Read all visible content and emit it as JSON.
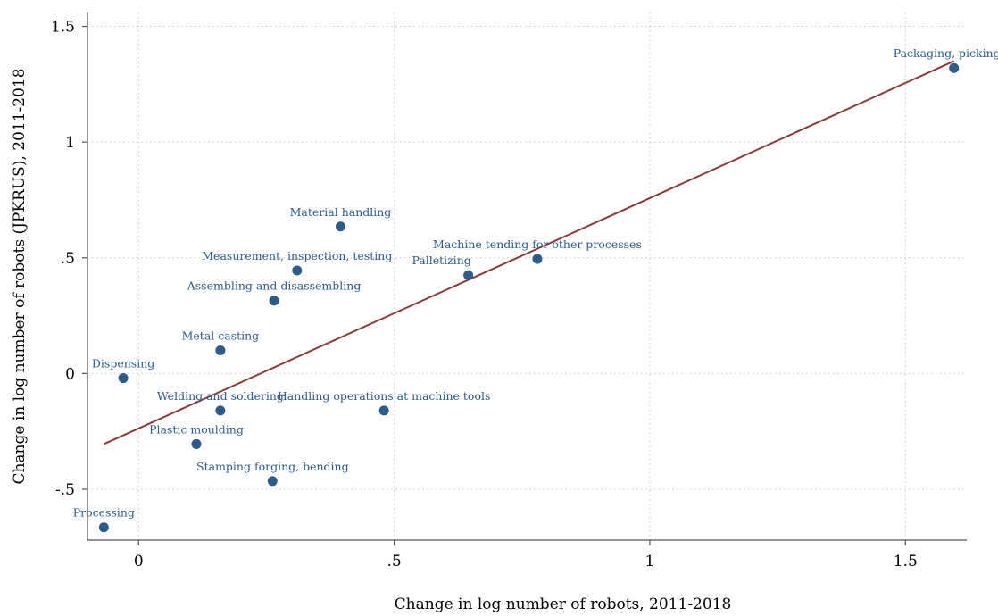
{
  "chart_data": {
    "type": "scatter",
    "title": "",
    "xlabel": "Change in log number of robots, 2011-2018",
    "ylabel": "Change in log number of robots (JPKRUS), 2011-2018",
    "xlim": [
      -0.1,
      1.62
    ],
    "ylim": [
      -0.72,
      1.56
    ],
    "xticks": [
      {
        "value": 0,
        "label": "0"
      },
      {
        "value": 0.5,
        "label": ".5"
      },
      {
        "value": 1,
        "label": "1"
      },
      {
        "value": 1.5,
        "label": "1.5"
      }
    ],
    "yticks": [
      {
        "value": -0.5,
        "label": "-.5"
      },
      {
        "value": 0,
        "label": "0"
      },
      {
        "value": 0.5,
        "label": ".5"
      },
      {
        "value": 1,
        "label": "1"
      },
      {
        "value": 1.5,
        "label": "1.5"
      }
    ],
    "grid": true,
    "legend": "none",
    "colors": {
      "points": "#2e5b8a",
      "labels": "#2e5b8a",
      "fit_line": "#8b3a3a"
    },
    "points": [
      {
        "label": "Packaging, picking, p",
        "x": 1.595,
        "y": 1.32,
        "label_pos": "above"
      },
      {
        "label": "Material handling",
        "x": 0.395,
        "y": 0.635,
        "label_pos": "above"
      },
      {
        "label": "Machine tending for other processes",
        "x": 0.78,
        "y": 0.495,
        "label_pos": "above"
      },
      {
        "label": "Measurement, inspection, testing",
        "x": 0.31,
        "y": 0.445,
        "label_pos": "above"
      },
      {
        "label": "Palletizing",
        "x": 0.645,
        "y": 0.425,
        "label_pos": "above-left"
      },
      {
        "label": "Assembling and disassembling",
        "x": 0.265,
        "y": 0.315,
        "label_pos": "above"
      },
      {
        "label": "Metal casting",
        "x": 0.16,
        "y": 0.1,
        "label_pos": "above"
      },
      {
        "label": "Dispensing",
        "x": -0.03,
        "y": -0.02,
        "label_pos": "above"
      },
      {
        "label": "Welding and soldering",
        "x": 0.16,
        "y": -0.16,
        "label_pos": "above"
      },
      {
        "label": "Handling operations at machine tools",
        "x": 0.48,
        "y": -0.16,
        "label_pos": "above"
      },
      {
        "label": "Plastic moulding",
        "x": 0.113,
        "y": -0.305,
        "label_pos": "above"
      },
      {
        "label": "Stamping forging, bending",
        "x": 0.262,
        "y": -0.465,
        "label_pos": "above"
      },
      {
        "label": "Processing",
        "x": -0.068,
        "y": -0.665,
        "label_pos": "above"
      }
    ],
    "fit_line": {
      "x": [
        -0.068,
        1.595
      ],
      "y": [
        -0.305,
        1.35
      ]
    }
  }
}
